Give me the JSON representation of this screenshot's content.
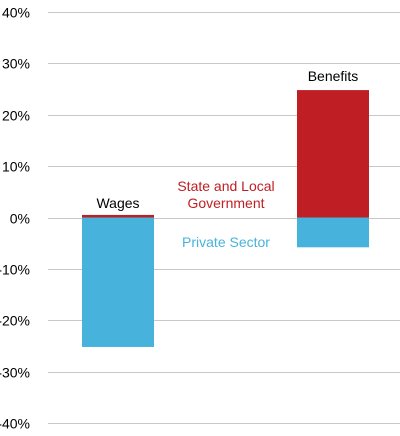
{
  "chart_data": {
    "type": "bar",
    "stacked": true,
    "categories": [
      "Wages",
      "Benefits"
    ],
    "series": [
      {
        "name": "Private Sector",
        "values": [
          -25.2,
          -5.8
        ],
        "color": "#47b3dd"
      },
      {
        "name": "State and Local Government",
        "values": [
          0.5,
          24.8
        ],
        "color": "#bf1e24"
      }
    ],
    "ylim": [
      -40,
      40
    ],
    "y_ticks": [
      40,
      30,
      20,
      10,
      0,
      -10,
      -20,
      -30,
      -40
    ],
    "y_tick_labels": [
      "40%",
      "30%",
      "20%",
      "10%",
      "0%",
      "-10%",
      "-20%",
      "-30%",
      "-40%"
    ],
    "grid": true,
    "title": "",
    "xlabel": "",
    "ylabel": "",
    "legend": {
      "placement": "inline-center",
      "entries": [
        {
          "label_lines": [
            "State and Local",
            "Government"
          ],
          "color": "#bf1e24"
        },
        {
          "label_lines": [
            "Private Sector"
          ],
          "color": "#47b3dd"
        }
      ]
    }
  }
}
